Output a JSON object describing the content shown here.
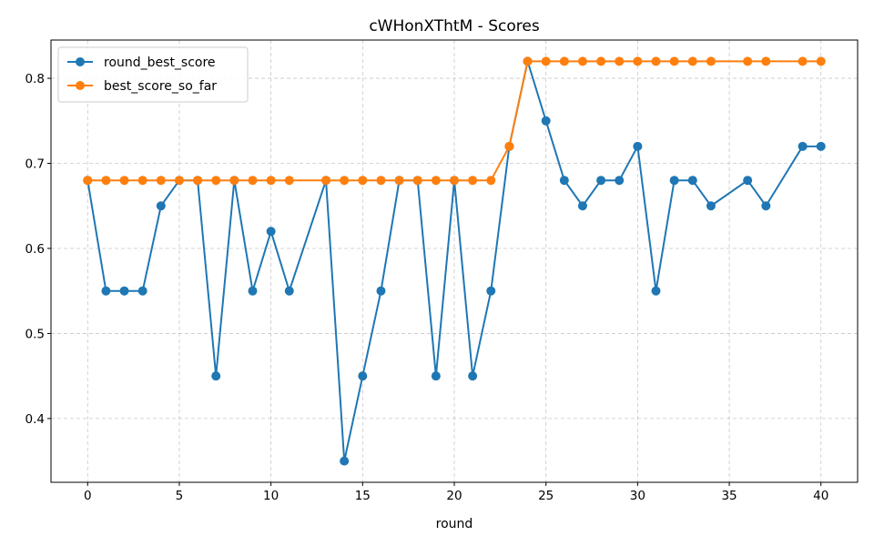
{
  "chart_data": {
    "type": "line",
    "title": "cWHonXThtM - Scores",
    "xlabel": "round",
    "ylabel": "",
    "xlim": [
      -2,
      42
    ],
    "ylim": [
      0.325,
      0.845
    ],
    "xticks": [
      0,
      5,
      10,
      15,
      20,
      25,
      30,
      35,
      40
    ],
    "yticks": [
      0.4,
      0.5,
      0.6,
      0.7,
      0.8
    ],
    "grid": true,
    "legend_position": "top-left",
    "series": [
      {
        "name": "round_best_score",
        "color": "#1f77b4",
        "x": [
          0,
          1,
          2,
          3,
          4,
          5,
          6,
          7,
          8,
          9,
          10,
          11,
          13,
          14,
          15,
          16,
          17,
          18,
          19,
          20,
          21,
          22,
          23,
          24,
          25,
          26,
          27,
          28,
          29,
          30,
          31,
          32,
          33,
          34,
          36,
          37,
          39,
          40
        ],
        "y": [
          0.68,
          0.55,
          0.55,
          0.55,
          0.65,
          0.68,
          0.68,
          0.45,
          0.68,
          0.55,
          0.62,
          0.55,
          0.68,
          0.35,
          0.45,
          0.55,
          0.68,
          0.68,
          0.45,
          0.68,
          0.45,
          0.55,
          0.72,
          0.82,
          0.75,
          0.68,
          0.65,
          0.68,
          0.68,
          0.72,
          0.55,
          0.68,
          0.68,
          0.65,
          0.68,
          0.65,
          0.72,
          0.72
        ]
      },
      {
        "name": "best_score_so_far",
        "color": "#ff7f0e",
        "x": [
          0,
          1,
          2,
          3,
          4,
          5,
          6,
          7,
          8,
          9,
          10,
          11,
          13,
          14,
          15,
          16,
          17,
          18,
          19,
          20,
          21,
          22,
          23,
          24,
          25,
          26,
          27,
          28,
          29,
          30,
          31,
          32,
          33,
          34,
          36,
          37,
          39,
          40
        ],
        "y": [
          0.68,
          0.68,
          0.68,
          0.68,
          0.68,
          0.68,
          0.68,
          0.68,
          0.68,
          0.68,
          0.68,
          0.68,
          0.68,
          0.68,
          0.68,
          0.68,
          0.68,
          0.68,
          0.68,
          0.68,
          0.68,
          0.68,
          0.72,
          0.82,
          0.82,
          0.82,
          0.82,
          0.82,
          0.82,
          0.82,
          0.82,
          0.82,
          0.82,
          0.82,
          0.82,
          0.82,
          0.82,
          0.82
        ]
      }
    ]
  }
}
